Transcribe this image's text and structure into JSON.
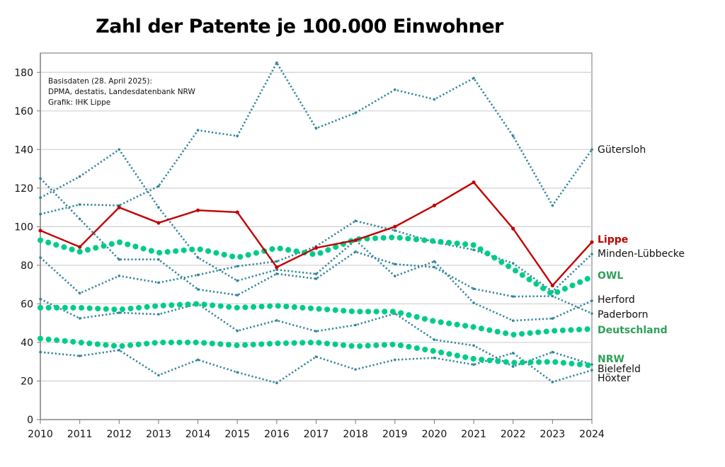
{
  "chart_data": {
    "type": "line",
    "title": "Zahl der Patente je 100.000 Einwohner",
    "note": [
      "Basisdaten (28. April 2025):",
      "DPMA, destatis, Landesdatenbank NRW",
      "Grafik: IHK Lippe"
    ],
    "xlabel": "",
    "ylabel": "",
    "x": [
      2010,
      2011,
      2012,
      2013,
      2014,
      2015,
      2016,
      2017,
      2018,
      2019,
      2020,
      2021,
      2022,
      2023,
      2024
    ],
    "ylim": [
      0,
      190
    ],
    "yticks": [
      0,
      20,
      40,
      60,
      80,
      100,
      120,
      140,
      160,
      180
    ],
    "grid": true,
    "legend": "inline-right",
    "series": [
      {
        "name": "Gütersloh",
        "style": "dotted",
        "color": "#31859C",
        "label_color": "#111111",
        "bold": false,
        "values": [
          106.5,
          111.5,
          111,
          121,
          150,
          147,
          185,
          151,
          159,
          171,
          166,
          177,
          147,
          111,
          140
        ]
      },
      {
        "name": "Lippe",
        "style": "solid",
        "color": "#C00000",
        "label_color": "#C00000",
        "bold": true,
        "values": [
          98,
          89.5,
          110,
          102,
          108.5,
          107.5,
          79,
          89,
          93,
          100,
          111,
          123,
          99,
          69.5,
          92
        ]
      },
      {
        "name": "Minden-Lübbecke",
        "style": "dotted",
        "color": "#31859C",
        "label_color": "#111111",
        "bold": false,
        "values": [
          84,
          65.5,
          74.5,
          71,
          75,
          79.5,
          82,
          89.8,
          103,
          98,
          92,
          88,
          81,
          66.4,
          85.8
        ]
      },
      {
        "name": "OWL",
        "style": "bigdot",
        "color": "#00CC88",
        "label_color": "#2EA05A",
        "bold": true,
        "values": [
          93,
          87,
          92,
          86.5,
          88.5,
          84,
          89,
          85.5,
          93.5,
          94.5,
          92.5,
          90.5,
          78,
          65,
          74
        ]
      },
      {
        "name": "Herford",
        "style": "dotted",
        "color": "#31859C",
        "label_color": "#111111",
        "bold": false,
        "values": [
          115,
          126,
          140,
          110,
          84,
          72,
          77.7,
          75.5,
          93,
          74.4,
          82,
          60.5,
          51.3,
          52.4,
          61.6
        ]
      },
      {
        "name": "Paderborn",
        "style": "dotted",
        "color": "#31859C",
        "label_color": "#111111",
        "bold": false,
        "values": [
          125,
          104,
          83,
          83,
          67.5,
          64.5,
          75.6,
          73,
          87,
          80.6,
          79,
          67.8,
          63.8,
          64,
          55
        ]
      },
      {
        "name": "Deutschland",
        "style": "bigdot",
        "color": "#00CC88",
        "label_color": "#2EA05A",
        "bold": true,
        "values": [
          58,
          58,
          57,
          59,
          60,
          58,
          59,
          57.5,
          56,
          56,
          51,
          48,
          44,
          46,
          47
        ]
      },
      {
        "name": "NRW",
        "style": "bigdot",
        "color": "#00CC88",
        "label_color": "#2EA05A",
        "bold": true,
        "values": [
          42,
          40,
          38,
          40,
          40,
          38.5,
          39.5,
          40,
          38,
          39,
          35.5,
          31.5,
          29.5,
          30,
          28
        ]
      },
      {
        "name": "Bielefeld",
        "style": "dotted",
        "color": "#31859C",
        "label_color": "#111111",
        "bold": false,
        "values": [
          62.5,
          52.5,
          55.4,
          54.6,
          60,
          46,
          51.4,
          45.8,
          49,
          55,
          41.4,
          38.4,
          27.5,
          35,
          28.6
        ]
      },
      {
        "name": "Höxter",
        "style": "dotted",
        "color": "#31859C",
        "label_color": "#111111",
        "bold": false,
        "values": [
          35,
          33,
          36,
          23,
          31,
          24.5,
          19,
          32.6,
          26,
          31,
          32,
          28.5,
          34.5,
          19.5,
          25.6
        ]
      }
    ]
  }
}
